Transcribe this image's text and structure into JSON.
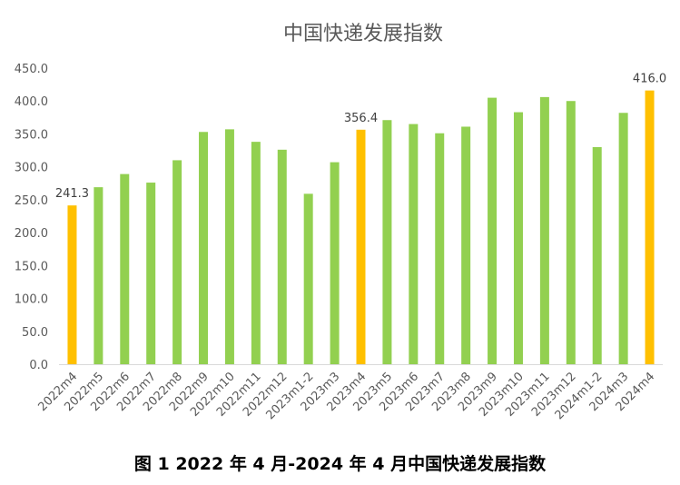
{
  "caption": "图 1 2022 年 4 月-2024 年 4 月中国快递发展指数",
  "colors": {
    "normal": "#92D050",
    "highlight": "#FFC000",
    "axis": "#D9D9D9",
    "text": "#595959"
  },
  "chart_data": {
    "type": "bar",
    "title": "中国快递发展指数",
    "xlabel": "",
    "ylabel": "",
    "ylim": [
      0,
      450
    ],
    "yticks": [
      0,
      50,
      100,
      150,
      200,
      250,
      300,
      350,
      400,
      450
    ],
    "ytick_labels": [
      "0.0",
      "50.0",
      "100.0",
      "150.0",
      "200.0",
      "250.0",
      "300.0",
      "350.0",
      "400.0",
      "450.0"
    ],
    "grid": false,
    "legend": "none",
    "categories": [
      "2022m4",
      "2022m5",
      "2022m6",
      "2022m7",
      "2022m8",
      "2022m9",
      "2022m10",
      "2022m11",
      "2022m12",
      "2023m1-2",
      "2023m3",
      "2023m4",
      "2023m5",
      "2023m6",
      "2023m7",
      "2023m8",
      "2023m9",
      "2023m10",
      "2023m11",
      "2023m12",
      "2024m1-2",
      "2024m3",
      "2024m4"
    ],
    "values": [
      241.3,
      269,
      289,
      276,
      310,
      353,
      357,
      338,
      326,
      259,
      307,
      356.4,
      371,
      365,
      351,
      361,
      405,
      383,
      406,
      400,
      330,
      382,
      416.0
    ],
    "highlighted": [
      0,
      11,
      22
    ],
    "data_labels": [
      {
        "index": 0,
        "text": "241.3"
      },
      {
        "index": 11,
        "text": "356.4"
      },
      {
        "index": 22,
        "text": "416.0"
      }
    ]
  }
}
